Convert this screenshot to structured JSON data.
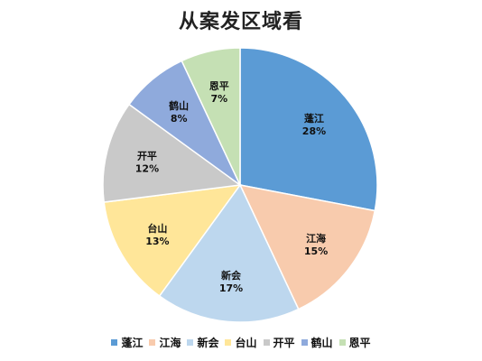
{
  "chart_data": {
    "type": "pie",
    "title": "从案发区域看",
    "categories": [
      "蓬江",
      "江海",
      "新会",
      "台山",
      "开平",
      "鹤山",
      "恩平"
    ],
    "values": [
      28,
      15,
      17,
      13,
      12,
      8,
      7
    ],
    "value_labels": [
      "28%",
      "15%",
      "17%",
      "13%",
      "12%",
      "8%",
      "7%"
    ],
    "colors": [
      "#5B9BD5",
      "#F8CBAD",
      "#BDD7EE",
      "#FFE699",
      "#C9C9C9",
      "#8FAADC",
      "#C5E0B4"
    ],
    "legend_position": "bottom"
  }
}
